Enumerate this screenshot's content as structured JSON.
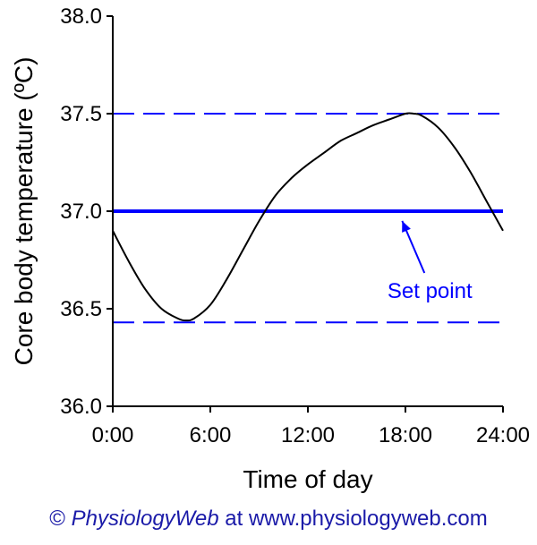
{
  "chart_data": {
    "type": "line",
    "xlabel": "Time of day",
    "ylabel": "Core body temperature (ºC)",
    "xlim": [
      0,
      24
    ],
    "ylim": [
      36.0,
      38.0
    ],
    "x_ticks": [
      0,
      6,
      12,
      18,
      24
    ],
    "x_tick_labels": [
      "0:00",
      "6:00",
      "12:00",
      "18:00",
      "24:00"
    ],
    "y_ticks": [
      36.0,
      36.5,
      37.0,
      37.5,
      38.0
    ],
    "y_tick_labels": [
      "36.0",
      "36.5",
      "37.0",
      "37.5",
      "38.0"
    ],
    "grid": false,
    "series": [
      {
        "x": [
          0,
          1,
          2,
          3,
          4,
          4.5,
          5,
          6,
          7,
          8,
          9,
          10,
          11,
          12,
          13,
          14,
          15,
          16,
          17,
          18,
          18.5,
          19,
          20,
          21,
          22,
          23,
          24
        ],
        "y": [
          36.9,
          36.74,
          36.6,
          36.5,
          36.45,
          36.44,
          36.45,
          36.52,
          36.65,
          36.8,
          36.95,
          37.08,
          37.17,
          37.24,
          37.3,
          37.36,
          37.4,
          37.44,
          37.47,
          37.5,
          37.5,
          37.49,
          37.43,
          37.33,
          37.2,
          37.05,
          36.9
        ]
      }
    ],
    "reference_lines": [
      {
        "y": 37.5,
        "style": "dashed"
      },
      {
        "y": 37.0,
        "style": "solid"
      },
      {
        "y": 36.43,
        "style": "dashed"
      }
    ],
    "annotations": [
      {
        "text": "Set point",
        "x": 19.5,
        "y": 36.5,
        "arrow_to": {
          "x": 17.8,
          "y": 36.95
        }
      }
    ],
    "colors": {
      "curve": "#000000",
      "reference": "#0000ff",
      "annotation": "#0000ff"
    }
  },
  "credit": {
    "symbol": "©",
    "brand": "PhysiologyWeb",
    "middle": "at",
    "url": "www.physiologyweb.com"
  }
}
